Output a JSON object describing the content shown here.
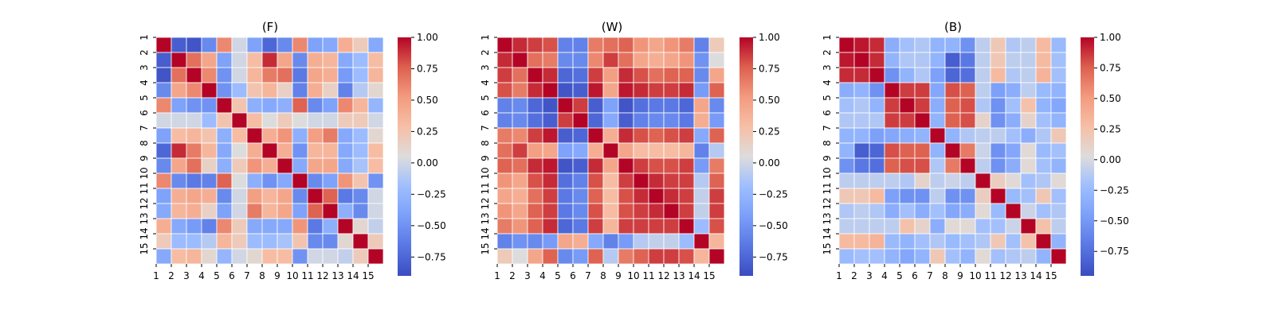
{
  "chart_data": [
    {
      "type": "heatmap",
      "title": "(F)",
      "x_tick_labels": [
        "1",
        "2",
        "3",
        "4",
        "5",
        "6",
        "7",
        "8",
        "9",
        "10",
        "11",
        "12",
        "13",
        "14",
        "15"
      ],
      "y_tick_labels": [
        "1",
        "2",
        "3",
        "4",
        "5",
        "6",
        "7",
        "8",
        "9",
        "10",
        "11",
        "12",
        "13",
        "14",
        "15"
      ],
      "colorbar": {
        "ticks": [
          "1.00",
          "0.75",
          "0.50",
          "0.25",
          "0.00",
          "−0.25",
          "−0.50",
          "−0.75"
        ],
        "vmin": -0.9,
        "vmax": 1.0
      },
      "values": [
        [
          1.0,
          -0.8,
          -0.85,
          -0.55,
          0.6,
          0.0,
          -0.4,
          -0.75,
          -0.55,
          0.6,
          -0.4,
          -0.35,
          0.4,
          0.2,
          -0.35
        ],
        [
          -0.8,
          1.0,
          0.7,
          0.45,
          -0.4,
          0.0,
          0.3,
          0.9,
          0.45,
          -0.55,
          0.4,
          0.35,
          -0.35,
          -0.2,
          0.3
        ],
        [
          -0.85,
          0.7,
          1.0,
          0.6,
          -0.5,
          0.0,
          0.35,
          0.65,
          0.7,
          -0.65,
          0.45,
          0.4,
          -0.45,
          -0.2,
          0.35
        ],
        [
          -0.55,
          0.45,
          0.6,
          1.0,
          -0.5,
          -0.2,
          0.25,
          0.35,
          0.15,
          -0.6,
          0.4,
          0.15,
          -0.6,
          -0.1,
          0.1
        ],
        [
          0.6,
          -0.4,
          -0.5,
          -0.5,
          1.0,
          0.25,
          -0.3,
          -0.35,
          -0.3,
          0.75,
          -0.55,
          -0.4,
          0.6,
          0.35,
          -0.25
        ],
        [
          0.0,
          0.0,
          0.0,
          -0.2,
          0.25,
          1.0,
          0.3,
          0.05,
          0.2,
          0.05,
          0.0,
          0.0,
          0.2,
          0.2,
          0.0
        ],
        [
          -0.4,
          0.3,
          0.35,
          0.25,
          -0.3,
          0.3,
          1.0,
          0.4,
          0.55,
          -0.3,
          0.5,
          0.65,
          -0.35,
          -0.2,
          0.1
        ],
        [
          -0.75,
          0.9,
          0.65,
          0.35,
          -0.35,
          0.05,
          0.4,
          1.0,
          0.4,
          -0.5,
          0.35,
          0.35,
          -0.35,
          -0.2,
          0.3
        ],
        [
          -0.55,
          0.45,
          0.7,
          0.15,
          -0.3,
          0.2,
          0.55,
          0.4,
          1.0,
          -0.35,
          0.45,
          0.45,
          -0.35,
          -0.15,
          0.3
        ],
        [
          0.6,
          -0.55,
          -0.65,
          -0.6,
          0.75,
          0.05,
          -0.3,
          -0.5,
          -0.35,
          1.0,
          -0.55,
          -0.4,
          0.55,
          0.25,
          -0.5
        ],
        [
          -0.4,
          0.4,
          0.45,
          0.4,
          -0.55,
          0.0,
          0.5,
          0.35,
          0.45,
          -0.55,
          1.0,
          0.75,
          -0.65,
          -0.55,
          0.0
        ],
        [
          -0.35,
          0.35,
          0.4,
          0.15,
          -0.4,
          0.0,
          0.65,
          0.35,
          0.45,
          -0.4,
          0.75,
          1.0,
          -0.3,
          -0.55,
          0.0
        ],
        [
          0.4,
          -0.35,
          -0.45,
          -0.6,
          0.6,
          0.2,
          -0.35,
          -0.35,
          -0.35,
          0.55,
          -0.65,
          -0.3,
          1.0,
          0.1,
          -0.05
        ],
        [
          0.2,
          -0.2,
          -0.2,
          -0.1,
          0.35,
          0.2,
          -0.2,
          -0.2,
          -0.15,
          0.25,
          -0.55,
          -0.55,
          0.1,
          1.0,
          0.2
        ],
        [
          -0.35,
          0.3,
          0.35,
          0.1,
          -0.25,
          0.0,
          0.1,
          0.3,
          0.3,
          -0.5,
          0.0,
          0.0,
          -0.05,
          0.2,
          1.0
        ]
      ]
    },
    {
      "type": "heatmap",
      "title": "(W)",
      "x_tick_labels": [
        "1",
        "2",
        "3",
        "4",
        "5",
        "6",
        "7",
        "8",
        "9",
        "10",
        "11",
        "12",
        "13",
        "14",
        "15"
      ],
      "y_tick_labels": [
        "1",
        "2",
        "3",
        "4",
        "5",
        "6",
        "7",
        "8",
        "9",
        "10",
        "11",
        "12",
        "13",
        "14",
        "15"
      ],
      "colorbar": {
        "ticks": [
          "1.00",
          "0.75",
          "0.50",
          "0.25",
          "0.00",
          "−0.25",
          "−0.50",
          "−0.75"
        ],
        "vmin": -0.9,
        "vmax": 1.0
      },
      "values": [
        [
          1.0,
          0.9,
          0.85,
          0.8,
          -0.6,
          -0.6,
          0.65,
          0.7,
          0.75,
          0.55,
          0.45,
          0.55,
          0.65,
          -0.6,
          0.2
        ],
        [
          0.9,
          1.0,
          0.7,
          0.65,
          -0.55,
          -0.55,
          0.6,
          0.85,
          0.7,
          0.45,
          0.4,
          0.45,
          0.55,
          -0.5,
          0.05
        ],
        [
          0.85,
          0.7,
          1.0,
          0.9,
          -0.75,
          -0.7,
          0.85,
          0.5,
          0.9,
          0.8,
          0.7,
          0.75,
          0.75,
          -0.55,
          0.45
        ],
        [
          0.8,
          0.65,
          0.9,
          1.0,
          -0.85,
          -0.8,
          0.95,
          0.45,
          0.95,
          0.9,
          0.85,
          0.85,
          0.9,
          -0.45,
          0.75
        ],
        [
          -0.6,
          -0.55,
          -0.75,
          -0.85,
          1.0,
          0.85,
          -0.8,
          -0.4,
          -0.85,
          -0.7,
          -0.65,
          -0.65,
          -0.75,
          0.45,
          -0.55
        ],
        [
          -0.6,
          -0.55,
          -0.7,
          -0.8,
          0.85,
          1.0,
          -0.75,
          -0.35,
          -0.8,
          -0.6,
          -0.55,
          -0.55,
          -0.65,
          0.4,
          -0.45
        ],
        [
          0.65,
          0.6,
          0.85,
          0.95,
          -0.8,
          -0.75,
          1.0,
          0.4,
          0.9,
          0.8,
          0.75,
          0.8,
          0.85,
          -0.35,
          0.75
        ],
        [
          0.7,
          0.85,
          0.5,
          0.45,
          -0.4,
          -0.35,
          0.4,
          1.0,
          0.45,
          0.3,
          0.3,
          0.3,
          0.35,
          -0.6,
          -0.1
        ],
        [
          0.75,
          0.7,
          0.9,
          0.95,
          -0.85,
          -0.8,
          0.9,
          0.45,
          1.0,
          0.85,
          0.8,
          0.8,
          0.85,
          -0.45,
          0.65
        ],
        [
          0.55,
          0.45,
          0.8,
          0.9,
          -0.7,
          -0.6,
          0.8,
          0.3,
          0.85,
          1.0,
          0.9,
          0.85,
          0.85,
          -0.1,
          0.75
        ],
        [
          0.45,
          0.4,
          0.7,
          0.85,
          -0.65,
          -0.55,
          0.75,
          0.3,
          0.8,
          0.9,
          1.0,
          0.9,
          0.85,
          -0.05,
          0.85
        ],
        [
          0.55,
          0.45,
          0.75,
          0.85,
          -0.65,
          -0.55,
          0.8,
          0.3,
          0.8,
          0.85,
          0.9,
          1.0,
          0.85,
          -0.05,
          0.85
        ],
        [
          0.65,
          0.55,
          0.75,
          0.9,
          -0.75,
          -0.65,
          0.85,
          0.35,
          0.85,
          0.85,
          0.85,
          0.85,
          1.0,
          -0.2,
          0.8
        ],
        [
          -0.6,
          -0.5,
          -0.55,
          -0.45,
          0.45,
          0.4,
          -0.35,
          -0.6,
          -0.45,
          -0.1,
          -0.05,
          -0.05,
          -0.2,
          1.0,
          0.35
        ],
        [
          0.2,
          0.05,
          0.45,
          0.75,
          -0.55,
          -0.45,
          0.75,
          -0.1,
          0.65,
          0.75,
          0.85,
          0.85,
          0.8,
          0.35,
          1.0
        ]
      ]
    },
    {
      "type": "heatmap",
      "title": "(B)",
      "x_tick_labels": [
        "1",
        "2",
        "3",
        "4",
        "5",
        "6",
        "7",
        "8",
        "9",
        "10",
        "11",
        "12",
        "13",
        "14",
        "15"
      ],
      "y_tick_labels": [
        "1",
        "2",
        "3",
        "4",
        "5",
        "6",
        "7",
        "8",
        "9",
        "10",
        "11",
        "12",
        "13",
        "14",
        "15"
      ],
      "colorbar": {
        "ticks": [
          "1.00",
          "0.75",
          "0.50",
          "0.25",
          "0.00",
          "−0.25",
          "−0.50",
          "−0.75"
        ],
        "vmin": -0.95,
        "vmax": 1.0
      },
      "values": [
        [
          1.0,
          0.95,
          0.9,
          -0.35,
          -0.2,
          -0.15,
          -0.3,
          -0.3,
          -0.55,
          -0.1,
          0.2,
          -0.15,
          -0.1,
          0.3,
          -0.25
        ],
        [
          0.95,
          1.0,
          0.9,
          -0.3,
          -0.15,
          -0.15,
          -0.3,
          -0.85,
          -0.7,
          -0.1,
          0.2,
          -0.1,
          -0.1,
          0.3,
          -0.2
        ],
        [
          0.9,
          0.9,
          1.0,
          -0.55,
          -0.3,
          -0.15,
          -0.45,
          -0.8,
          -0.75,
          -0.1,
          0.3,
          -0.15,
          -0.1,
          0.35,
          -0.2
        ],
        [
          -0.35,
          -0.3,
          -0.55,
          1.0,
          0.85,
          0.85,
          -0.4,
          0.8,
          0.75,
          -0.1,
          -0.45,
          -0.35,
          -0.1,
          -0.25,
          -0.3
        ],
        [
          -0.2,
          -0.15,
          -0.3,
          0.85,
          1.0,
          0.85,
          -0.35,
          0.75,
          0.8,
          -0.15,
          -0.55,
          -0.2,
          0.25,
          -0.3,
          -0.4
        ],
        [
          -0.15,
          -0.15,
          -0.15,
          0.85,
          0.85,
          1.0,
          -0.3,
          0.75,
          0.8,
          0.1,
          -0.55,
          -0.35,
          0.1,
          -0.2,
          -0.3
        ],
        [
          -0.3,
          -0.3,
          -0.45,
          -0.4,
          -0.35,
          -0.3,
          1.0,
          -0.3,
          -0.15,
          -0.1,
          -0.1,
          -0.2,
          -0.35,
          -0.15,
          0.2
        ],
        [
          -0.3,
          -0.85,
          -0.8,
          0.8,
          0.75,
          0.75,
          -0.3,
          1.0,
          0.65,
          -0.05,
          -0.55,
          -0.4,
          0.05,
          -0.25,
          -0.2
        ],
        [
          -0.55,
          -0.7,
          -0.75,
          0.75,
          0.8,
          0.8,
          -0.15,
          0.65,
          1.0,
          -0.1,
          -0.55,
          -0.35,
          0.05,
          -0.2,
          -0.3
        ],
        [
          -0.1,
          -0.1,
          -0.1,
          -0.1,
          -0.15,
          0.1,
          -0.1,
          -0.05,
          -0.1,
          1.0,
          0.15,
          0.05,
          -0.2,
          -0.15,
          0.05
        ],
        [
          0.2,
          0.2,
          0.3,
          -0.45,
          -0.55,
          -0.55,
          -0.1,
          -0.55,
          -0.55,
          0.15,
          1.0,
          -0.25,
          -0.2,
          0.2,
          -0.2
        ],
        [
          -0.15,
          -0.1,
          -0.15,
          -0.35,
          -0.2,
          -0.35,
          -0.2,
          -0.4,
          -0.35,
          0.05,
          -0.25,
          1.0,
          -0.05,
          -0.2,
          -0.15
        ],
        [
          -0.1,
          -0.1,
          -0.1,
          -0.1,
          0.25,
          0.1,
          -0.35,
          0.05,
          0.05,
          -0.2,
          -0.2,
          -0.05,
          1.0,
          0.25,
          -0.1
        ],
        [
          0.3,
          0.3,
          0.35,
          -0.25,
          -0.3,
          -0.2,
          -0.15,
          -0.25,
          -0.2,
          -0.15,
          0.2,
          -0.2,
          0.25,
          1.0,
          -0.3
        ],
        [
          -0.25,
          -0.2,
          -0.2,
          -0.3,
          -0.4,
          -0.3,
          0.2,
          -0.2,
          -0.3,
          0.05,
          -0.2,
          -0.15,
          -0.1,
          -0.3,
          1.0
        ]
      ]
    }
  ]
}
